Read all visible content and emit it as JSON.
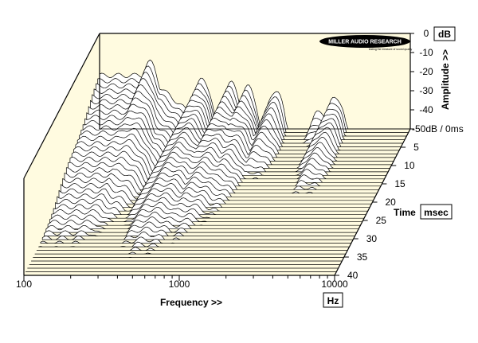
{
  "chart_data": {
    "type": "waterfall",
    "title": "",
    "logo": {
      "name": "MILLER AUDIO RESEARCH",
      "tagline": "testing the measure of sound quality"
    },
    "xaxis": {
      "label": "Frequency >>",
      "unit": "Hz",
      "scale": "log",
      "range": [
        100,
        10000
      ],
      "ticks": [
        {
          "value": 100,
          "label": "100"
        },
        {
          "value": 1000,
          "label": "1000"
        },
        {
          "value": 10000,
          "label": "10000"
        }
      ]
    },
    "yaxis": {
      "label": "Amplitude >>",
      "unit": "dB",
      "range": [
        -50,
        0
      ],
      "ticks": [
        {
          "value": 0,
          "label": "0"
        },
        {
          "value": -10,
          "label": "-10"
        },
        {
          "value": -20,
          "label": "-20"
        },
        {
          "value": -30,
          "label": "-30"
        },
        {
          "value": -40,
          "label": "-40"
        },
        {
          "value": -50,
          "label": "-50dB / 0ms"
        }
      ]
    },
    "zaxis": {
      "label": "Time",
      "unit": "msec",
      "range": [
        0,
        40
      ],
      "ticks": [
        {
          "value": 5,
          "label": "5"
        },
        {
          "value": 10,
          "label": "10"
        },
        {
          "value": 15,
          "label": "15"
        },
        {
          "value": 20,
          "label": "20"
        },
        {
          "value": 25,
          "label": "25"
        },
        {
          "value": 30,
          "label": "30"
        },
        {
          "value": 35,
          "label": "35"
        },
        {
          "value": 40,
          "label": "40"
        }
      ]
    },
    "slices": 42,
    "resonances": [
      {
        "freq_hz": 210,
        "peak_db": -15,
        "decay_ms": 26
      },
      {
        "freq_hz": 460,
        "peak_db": -24,
        "decay_ms": 34
      },
      {
        "freq_hz": 700,
        "peak_db": -26,
        "decay_ms": 30
      },
      {
        "freq_hz": 900,
        "peak_db": -28,
        "decay_ms": 24
      },
      {
        "freq_hz": 1350,
        "peak_db": -30,
        "decay_ms": 14
      },
      {
        "freq_hz": 2600,
        "peak_db": -40,
        "decay_ms": 6
      },
      {
        "freq_hz": 3300,
        "peak_db": -33,
        "decay_ms": 18
      }
    ]
  }
}
